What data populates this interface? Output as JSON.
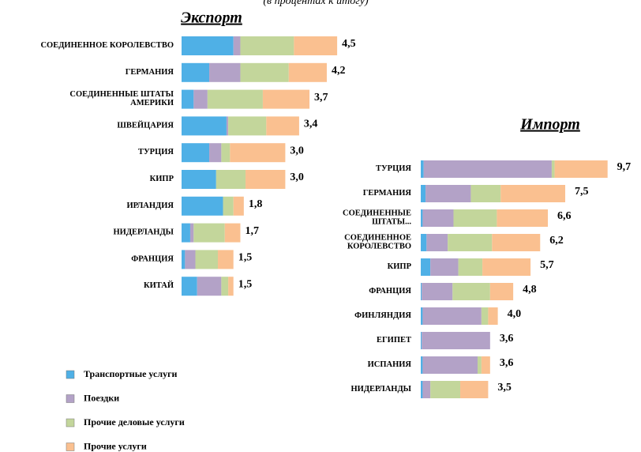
{
  "subtitle": "(в процентах к итогу)",
  "legend": [
    {
      "name": "Транспортные услуги",
      "color": "#4fb0e6"
    },
    {
      "name": "Поездки",
      "color": "#b3a2c7"
    },
    {
      "name": "Прочие деловые услуги",
      "color": "#c3d69b"
    },
    {
      "name": "Прочие услуги",
      "color": "#fac090"
    }
  ],
  "chart_data": [
    {
      "type": "bar",
      "orientation": "horizontal",
      "stacked": true,
      "title": "Экспорт",
      "categories": [
        "СОЕДИНЕННОЕ КОРОЛЕВСТВО",
        "ГЕРМАНИЯ",
        "СОЕДИНЕННЫЕ ШТАТЫ АМЕРИКИ",
        "ШВЕЙЦАРИЯ",
        "ТУРЦИЯ",
        "КИПР",
        "ИРЛАНДИЯ",
        "НИДЕРЛАНДЫ",
        "ФРАНЦИЯ",
        "КИТАЙ"
      ],
      "series": [
        {
          "values": [
            1.5,
            0.8,
            0.35,
            1.3,
            0.8,
            1.0,
            1.2,
            0.25,
            0.1,
            0.45
          ]
        },
        {
          "values": [
            0.2,
            0.9,
            0.4,
            0.05,
            0.35,
            0,
            0,
            0.1,
            0.3,
            0.7
          ]
        },
        {
          "values": [
            1.55,
            1.4,
            1.6,
            1.1,
            0.25,
            0.85,
            0.3,
            0.9,
            0.65,
            0.2
          ]
        },
        {
          "values": [
            1.25,
            1.1,
            1.35,
            0.95,
            1.6,
            1.15,
            0.3,
            0.45,
            0.45,
            0.15
          ]
        }
      ],
      "totals": [
        4.5,
        4.2,
        3.7,
        3.4,
        3.0,
        3.0,
        1.8,
        1.7,
        1.5,
        1.5
      ],
      "total_labels": [
        "4,5",
        "4,2",
        "3,7",
        "3,4",
        "3,0",
        "3,0",
        "1,8",
        "1,7",
        "1,5",
        "1,5"
      ]
    },
    {
      "type": "bar",
      "orientation": "horizontal",
      "stacked": true,
      "title": "Импорт",
      "categories": [
        "ТУРЦИЯ",
        "ГЕРМАНИЯ",
        "СОЕДИНЕННЫЕ ШТАТЫ...",
        "СОЕДИНЕННОЕ КОРОЛЕВСТВО",
        "КИПР",
        "ФРАНЦИЯ",
        "ФИНЛЯНДИЯ",
        "ЕГИПЕТ",
        "ИСПАНИЯ",
        "НИДЕРЛАНДЫ"
      ],
      "series": [
        {
          "values": [
            0.15,
            0.25,
            0.1,
            0.3,
            0.5,
            0.05,
            0.1,
            0.05,
            0.1,
            0.1
          ]
        },
        {
          "values": [
            6.65,
            2.35,
            1.6,
            1.1,
            1.45,
            1.6,
            3.05,
            3.55,
            2.85,
            0.4
          ]
        },
        {
          "values": [
            0.15,
            1.55,
            2.25,
            2.3,
            1.25,
            1.95,
            0.35,
            0,
            0.2,
            1.55
          ]
        },
        {
          "values": [
            2.75,
            3.35,
            2.65,
            2.5,
            2.5,
            1.2,
            0.5,
            0,
            0.45,
            1.45
          ]
        }
      ],
      "totals": [
        9.7,
        7.5,
        6.6,
        6.2,
        5.7,
        4.8,
        4.0,
        3.6,
        3.6,
        3.5
      ],
      "total_labels": [
        "9,7",
        "7,5",
        "6,6",
        "6,2",
        "5,7",
        "4,8",
        "4,0",
        "3,6",
        "3,6",
        "3,5"
      ]
    }
  ]
}
